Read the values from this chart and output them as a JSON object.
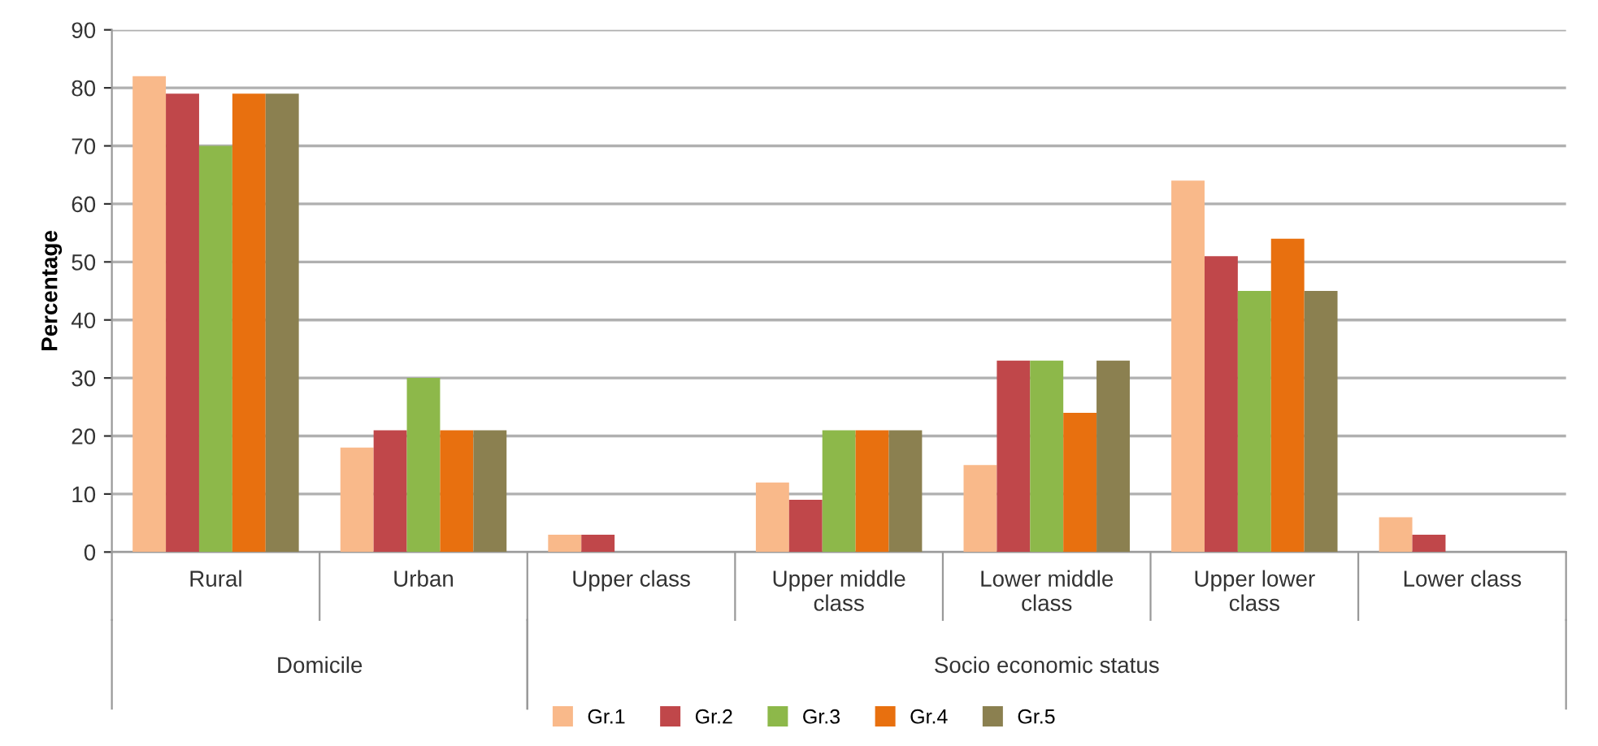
{
  "chart_data": {
    "type": "bar",
    "ylabel": "Percentage",
    "categories": [
      "Rural",
      "Urban",
      "Upper class",
      "Upper middle class",
      "Lower middle class",
      "Upper lower class",
      "Lower class"
    ],
    "series": [
      {
        "name": "Gr.1",
        "color": "#f9b98a",
        "values": [
          82,
          18,
          3,
          12,
          15,
          64,
          6
        ]
      },
      {
        "name": "Gr.2",
        "color": "#c0474a",
        "values": [
          79,
          21,
          3,
          9,
          33,
          51,
          3
        ]
      },
      {
        "name": "Gr.3",
        "color": "#8db84a",
        "values": [
          70,
          30,
          0,
          21,
          33,
          45,
          0
        ]
      },
      {
        "name": "Gr.4",
        "color": "#e8700f",
        "values": [
          79,
          21,
          0,
          21,
          24,
          54,
          0
        ]
      },
      {
        "name": "Gr.5",
        "color": "#8b8050",
        "values": [
          79,
          21,
          0,
          21,
          33,
          45,
          0
        ]
      }
    ],
    "annotations": [
      "Domicile",
      "Socio economic status"
    ],
    "ylim": [
      0,
      90
    ],
    "yticks": [
      0,
      10,
      20,
      30,
      40,
      50,
      60,
      70,
      80,
      90
    ],
    "grid": "y",
    "legend": "bottom"
  }
}
